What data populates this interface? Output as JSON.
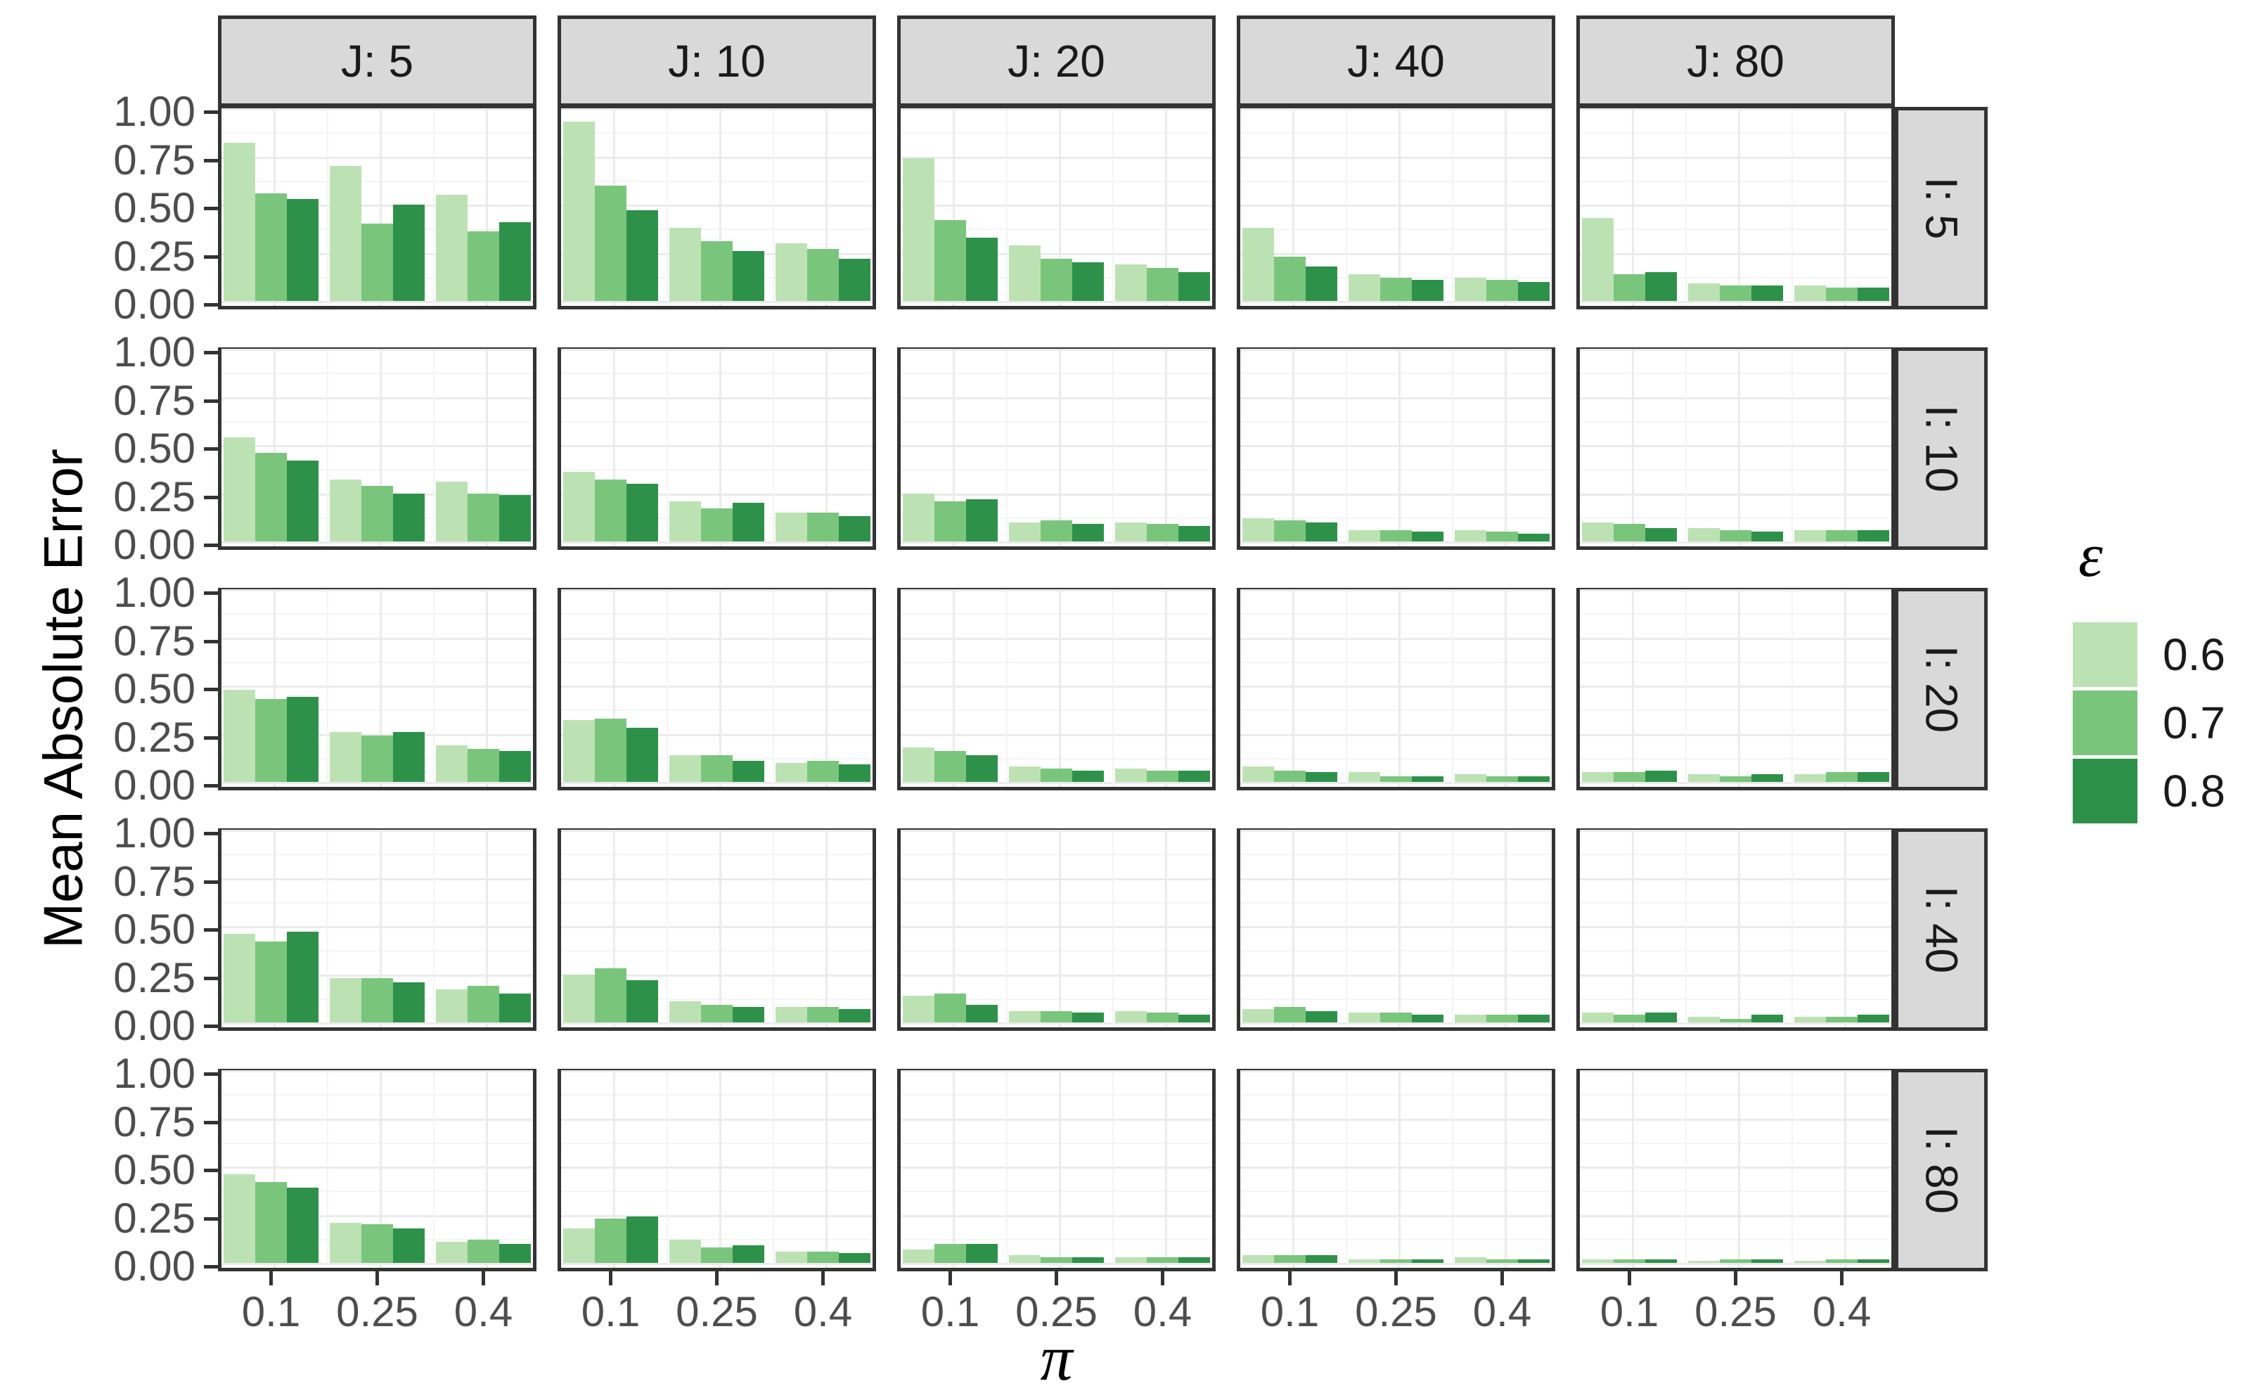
{
  "axes": {
    "y_title": "Mean Absolute Error",
    "x_title": "π",
    "y_ticks": [
      "1.00",
      "0.75",
      "0.50",
      "0.25",
      "0.00"
    ],
    "x_ticks": [
      "0.1",
      "0.25",
      "0.4"
    ]
  },
  "legend": {
    "title": "ε",
    "entries": [
      {
        "label": "0.6",
        "color": "#BCE2B4"
      },
      {
        "label": "0.7",
        "color": "#7AC57C"
      },
      {
        "label": "0.8",
        "color": "#2E9149"
      }
    ]
  },
  "style": {
    "strip_bg": "#D9D9D9",
    "panel_border": "#333333",
    "major_grid": "#EBEBEB",
    "minor_grid": "#F4F4F4",
    "tick_label_color": "#4D4D4D"
  },
  "chart_data": {
    "type": "bar",
    "title": "",
    "xlabel": "π",
    "ylabel": "Mean Absolute Error",
    "ylim": [
      0,
      1
    ],
    "y_tick_values": [
      0,
      0.25,
      0.5,
      0.75,
      1.0
    ],
    "grid": "on",
    "legend_position": "right",
    "legend_title": "ε",
    "facet_cols": [
      "J: 5",
      "J: 10",
      "J: 20",
      "J: 40",
      "J: 80"
    ],
    "facet_rows": [
      "I: 5",
      "I: 10",
      "I: 20",
      "I: 40",
      "I: 80"
    ],
    "x_categories": [
      "0.1",
      "0.25",
      "0.4"
    ],
    "series_names": [
      "0.6",
      "0.7",
      "0.8"
    ],
    "series_colors": [
      "#BCE2B4",
      "#7AC57C",
      "#2E9149"
    ],
    "values": [
      [
        [
          [
            0.82,
            0.56,
            0.53
          ],
          [
            0.7,
            0.4,
            0.5
          ],
          [
            0.55,
            0.36,
            0.41
          ]
        ],
        [
          [
            0.93,
            0.6,
            0.47
          ],
          [
            0.38,
            0.31,
            0.26
          ],
          [
            0.3,
            0.27,
            0.22
          ]
        ],
        [
          [
            0.74,
            0.42,
            0.33
          ],
          [
            0.29,
            0.22,
            0.2
          ],
          [
            0.19,
            0.17,
            0.15
          ]
        ],
        [
          [
            0.38,
            0.23,
            0.18
          ],
          [
            0.14,
            0.12,
            0.11
          ],
          [
            0.12,
            0.11,
            0.1
          ]
        ],
        [
          [
            0.43,
            0.14,
            0.15
          ],
          [
            0.09,
            0.08,
            0.08
          ],
          [
            0.08,
            0.07,
            0.07
          ]
        ]
      ],
      [
        [
          [
            0.54,
            0.46,
            0.42
          ],
          [
            0.32,
            0.29,
            0.25
          ],
          [
            0.31,
            0.25,
            0.24
          ]
        ],
        [
          [
            0.36,
            0.32,
            0.3
          ],
          [
            0.21,
            0.17,
            0.2
          ],
          [
            0.15,
            0.15,
            0.13
          ]
        ],
        [
          [
            0.25,
            0.21,
            0.22
          ],
          [
            0.1,
            0.11,
            0.09
          ],
          [
            0.1,
            0.09,
            0.08
          ]
        ],
        [
          [
            0.12,
            0.11,
            0.1
          ],
          [
            0.06,
            0.06,
            0.05
          ],
          [
            0.06,
            0.05,
            0.04
          ]
        ],
        [
          [
            0.1,
            0.09,
            0.07
          ],
          [
            0.07,
            0.06,
            0.05
          ],
          [
            0.06,
            0.06,
            0.06
          ]
        ]
      ],
      [
        [
          [
            0.48,
            0.43,
            0.44
          ],
          [
            0.26,
            0.24,
            0.26
          ],
          [
            0.19,
            0.17,
            0.16
          ]
        ],
        [
          [
            0.32,
            0.33,
            0.28
          ],
          [
            0.14,
            0.14,
            0.11
          ],
          [
            0.1,
            0.11,
            0.09
          ]
        ],
        [
          [
            0.18,
            0.16,
            0.14
          ],
          [
            0.08,
            0.07,
            0.06
          ],
          [
            0.07,
            0.06,
            0.06
          ]
        ],
        [
          [
            0.08,
            0.06,
            0.05
          ],
          [
            0.05,
            0.03,
            0.03
          ],
          [
            0.04,
            0.03,
            0.03
          ]
        ],
        [
          [
            0.05,
            0.05,
            0.06
          ],
          [
            0.04,
            0.03,
            0.04
          ],
          [
            0.04,
            0.05,
            0.05
          ]
        ]
      ],
      [
        [
          [
            0.46,
            0.42,
            0.47
          ],
          [
            0.23,
            0.23,
            0.21
          ],
          [
            0.17,
            0.19,
            0.15
          ]
        ],
        [
          [
            0.25,
            0.28,
            0.22
          ],
          [
            0.11,
            0.09,
            0.08
          ],
          [
            0.08,
            0.08,
            0.07
          ]
        ],
        [
          [
            0.14,
            0.15,
            0.09
          ],
          [
            0.06,
            0.06,
            0.05
          ],
          [
            0.06,
            0.05,
            0.04
          ]
        ],
        [
          [
            0.07,
            0.08,
            0.06
          ],
          [
            0.05,
            0.05,
            0.04
          ],
          [
            0.04,
            0.04,
            0.04
          ]
        ],
        [
          [
            0.05,
            0.04,
            0.05
          ],
          [
            0.03,
            0.02,
            0.04
          ],
          [
            0.03,
            0.03,
            0.04
          ]
        ]
      ],
      [
        [
          [
            0.46,
            0.42,
            0.39
          ],
          [
            0.21,
            0.2,
            0.18
          ],
          [
            0.11,
            0.12,
            0.1
          ]
        ],
        [
          [
            0.18,
            0.23,
            0.24
          ],
          [
            0.12,
            0.08,
            0.09
          ],
          [
            0.06,
            0.06,
            0.05
          ]
        ],
        [
          [
            0.07,
            0.1,
            0.1
          ],
          [
            0.04,
            0.03,
            0.03
          ],
          [
            0.03,
            0.03,
            0.03
          ]
        ],
        [
          [
            0.04,
            0.04,
            0.04
          ],
          [
            0.02,
            0.02,
            0.02
          ],
          [
            0.03,
            0.02,
            0.02
          ]
        ],
        [
          [
            0.02,
            0.02,
            0.02
          ],
          [
            0.01,
            0.02,
            0.02
          ],
          [
            0.01,
            0.02,
            0.02
          ]
        ]
      ]
    ]
  }
}
